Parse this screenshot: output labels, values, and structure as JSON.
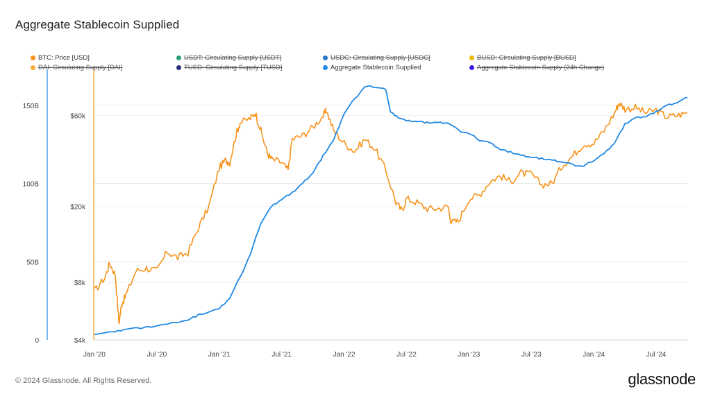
{
  "header": {
    "title": "Aggregate Stablecoin Supplied"
  },
  "legend": [
    {
      "label": "BTC: Price [USD]",
      "color": "#f7931a",
      "active": true
    },
    {
      "label": "USDT: Circulating Supply [USDT]",
      "color": "#26a17b",
      "active": false
    },
    {
      "label": "USDC: Circulating Supply [USDC]",
      "color": "#2775ca",
      "active": false
    },
    {
      "label": "BUSD: Circulating Supply [BUSD]",
      "color": "#f0b90b",
      "active": false
    },
    {
      "label": "DAI: Circulating Supply [DAI]",
      "color": "#f5ac37",
      "active": false
    },
    {
      "label": "TUSD: Circulating Supply [TUSD]",
      "color": "#2b2e7f",
      "active": false
    },
    {
      "label": "Aggregate Stablecoin Supplied",
      "color": "#1e88e5",
      "active": true
    },
    {
      "label": "Aggregate Stablecoin Supply (24h Change)",
      "color": "#3d1ee5",
      "active": false
    }
  ],
  "footer": {
    "copyright": "© 2024 Glassnode. All Rights Reserved.",
    "brand": "glassnode"
  },
  "chart_data": {
    "type": "line",
    "x_ticks": [
      "Jan '20",
      "Jul '20",
      "Jan '21",
      "Jul '21",
      "Jan '22",
      "Jul '22",
      "Jan '23",
      "Jul '23",
      "Jan '24",
      "Jul '24"
    ],
    "x_range": [
      "2020-01",
      "2024-10"
    ],
    "y_left": {
      "ticks": [
        "0",
        "50B",
        "100B",
        "150B"
      ],
      "values": [
        0,
        50,
        100,
        150
      ],
      "unit": "B",
      "range": [
        0,
        165
      ],
      "color": "#1e88e5"
    },
    "y_right": {
      "ticks": [
        "$4k",
        "$8k",
        "$20k",
        "$60k"
      ],
      "values": [
        4000,
        8000,
        20000,
        60000
      ],
      "scale": "log",
      "range": [
        4000,
        90000
      ],
      "color": "#f7931a"
    },
    "grid": true,
    "series": [
      {
        "name": "BTC: Price [USD]",
        "axis": "right",
        "color": "#f7931a",
        "x": [
          "2020-01",
          "2020-02",
          "2020-02-15",
          "2020-03-01",
          "2020-03-12",
          "2020-03-20",
          "2020-04",
          "2020-05",
          "2020-06",
          "2020-07",
          "2020-08",
          "2020-09",
          "2020-10",
          "2020-11",
          "2020-12",
          "2021-01",
          "2021-01-20",
          "2021-02",
          "2021-02-20",
          "2021-03",
          "2021-04",
          "2021-04-15",
          "2021-05",
          "2021-05-20",
          "2021-06",
          "2021-07",
          "2021-07-20",
          "2021-08",
          "2021-09",
          "2021-10",
          "2021-11",
          "2021-11-10",
          "2021-12",
          "2022-01",
          "2022-02",
          "2022-03",
          "2022-04",
          "2022-05",
          "2022-06",
          "2022-06-18",
          "2022-07",
          "2022-08",
          "2022-09",
          "2022-10",
          "2022-11",
          "2022-11-10",
          "2022-12",
          "2023-01",
          "2023-02",
          "2023-03",
          "2023-04",
          "2023-05",
          "2023-06",
          "2023-07",
          "2023-08",
          "2023-09",
          "2023-10",
          "2023-11",
          "2023-12",
          "2024-01",
          "2024-02",
          "2024-03",
          "2024-03-14",
          "2024-04",
          "2024-05",
          "2024-06",
          "2024-07",
          "2024-08",
          "2024-09",
          "2024-10"
        ],
        "y": [
          7200,
          8500,
          10100,
          8800,
          4900,
          6200,
          6800,
          9200,
          9500,
          9200,
          11600,
          10800,
          11500,
          15500,
          20000,
          32000,
          35000,
          34000,
          48000,
          55000,
          58000,
          62000,
          50000,
          38000,
          35500,
          34000,
          31000,
          45000,
          47000,
          52000,
          60000,
          64000,
          50000,
          43000,
          39000,
          45000,
          40000,
          31000,
          21000,
          19000,
          22000,
          21000,
          19500,
          19500,
          20000,
          16500,
          16800,
          22000,
          23000,
          27000,
          29000,
          27000,
          30000,
          29500,
          26000,
          26500,
          33000,
          37000,
          42500,
          43000,
          50000,
          62000,
          70000,
          65000,
          66000,
          62000,
          64000,
          59000,
          60000,
          62000
        ]
      },
      {
        "name": "Aggregate Stablecoin Supplied",
        "axis": "left",
        "color": "#1e88e5",
        "x": [
          "2020-01",
          "2020-03",
          "2020-04",
          "2020-06",
          "2020-08",
          "2020-10",
          "2020-11",
          "2021-01",
          "2021-02",
          "2021-03",
          "2021-04",
          "2021-05",
          "2021-06",
          "2021-07",
          "2021-08",
          "2021-09",
          "2021-10",
          "2021-11",
          "2021-12",
          "2022-01",
          "2022-02",
          "2022-03",
          "2022-04",
          "2022-05",
          "2022-05-15",
          "2022-06",
          "2022-07",
          "2022-08",
          "2022-09",
          "2022-10",
          "2022-11",
          "2022-12",
          "2023-01",
          "2023-02",
          "2023-03",
          "2023-04",
          "2023-05",
          "2023-06",
          "2023-07",
          "2023-08",
          "2023-09",
          "2023-10",
          "2023-11",
          "2023-12",
          "2024-01",
          "2024-02",
          "2024-03",
          "2024-04",
          "2024-05",
          "2024-06",
          "2024-07",
          "2024-08",
          "2024-09",
          "2024-10"
        ],
        "y": [
          4,
          5,
          7,
          8,
          10,
          13,
          16,
          20,
          27,
          40,
          55,
          75,
          85,
          90,
          94,
          100,
          107,
          118,
          128,
          145,
          154,
          162,
          162,
          160,
          146,
          143,
          140,
          140,
          139,
          139,
          139,
          134,
          132,
          128,
          126,
          122,
          120,
          118,
          117,
          116,
          115,
          114,
          112,
          111,
          115,
          119,
          126,
          138,
          142,
          143,
          146,
          150,
          152,
          155
        ]
      }
    ]
  }
}
